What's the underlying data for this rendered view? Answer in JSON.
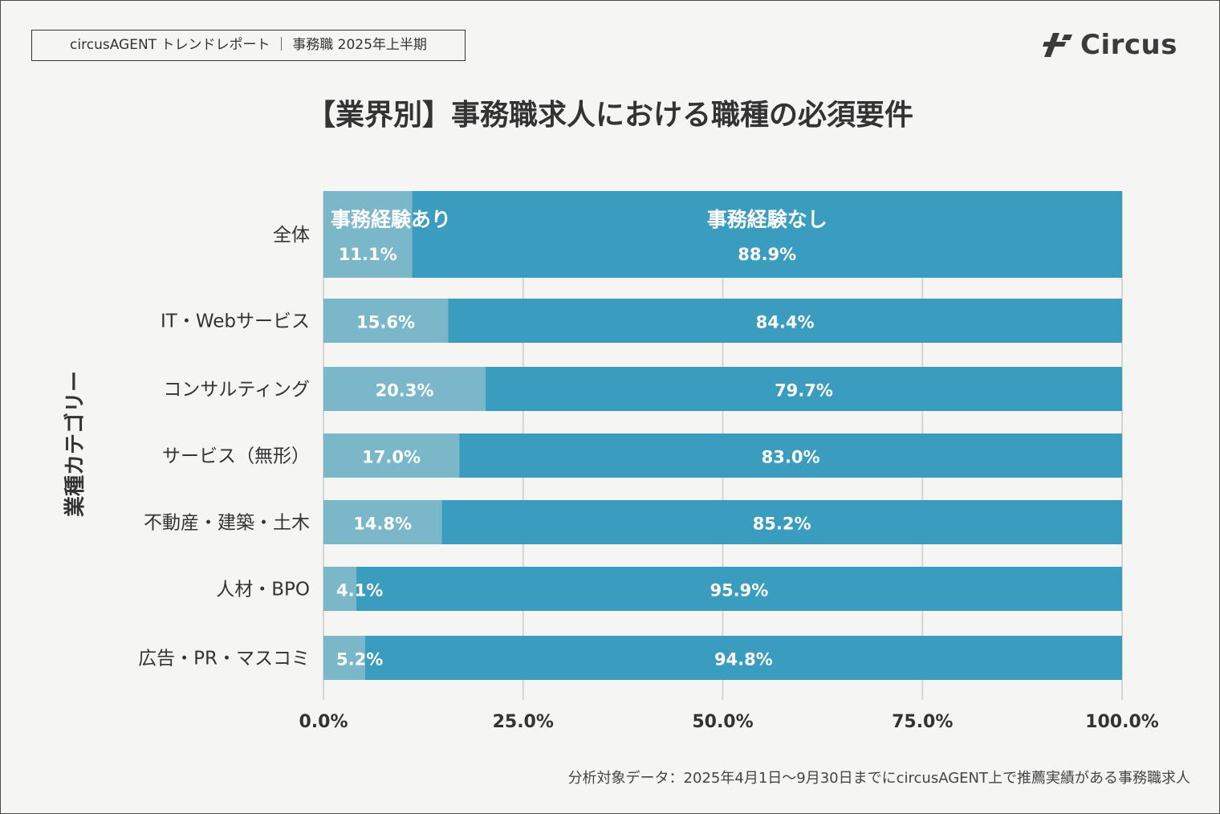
{
  "header": {
    "report_label": "circusAGENT トレンドレポート ｜ 事務職 2025年上半期",
    "logo_text": "Circus"
  },
  "colors": {
    "with_experience": "#7ab8c9",
    "without_experience": "#3a9dbf",
    "grid": "#d4d4d4",
    "text": "#333333"
  },
  "chart_data": {
    "type": "bar",
    "orientation": "horizontal",
    "stacked": true,
    "title": "【業界別】事務職求人における職種の必須要件",
    "ylabel": "業種カテゴリー",
    "xlabel": "",
    "xlim": [
      0,
      100
    ],
    "xticks": [
      0,
      25,
      50,
      75,
      100
    ],
    "xtick_labels": [
      "0.0%",
      "25.0%",
      "50.0%",
      "75.0%",
      "100.0%"
    ],
    "categories": [
      "全体",
      "IT・Webサービス",
      "コンサルティング",
      "サービス（無形）",
      "不動産・建築・土木",
      "人材・BPO",
      "広告・PR・マスコミ"
    ],
    "series": [
      {
        "name": "事務経験あり",
        "values": [
          11.1,
          15.6,
          20.3,
          17.0,
          14.8,
          4.1,
          5.2
        ],
        "labels": [
          "11.1%",
          "15.6%",
          "20.3%",
          "17.0%",
          "14.8%",
          "4.1%",
          "5.2%"
        ]
      },
      {
        "name": "事務経験なし",
        "values": [
          88.9,
          84.4,
          79.7,
          83.0,
          85.2,
          95.9,
          94.8
        ],
        "labels": [
          "88.9%",
          "84.4%",
          "79.7%",
          "83.0%",
          "85.2%",
          "95.9%",
          "94.8%"
        ]
      }
    ]
  },
  "footnote": "分析対象データ：2025年4月1日〜9月30日までにcircusAGENT上で推薦実績がある事務職求人"
}
